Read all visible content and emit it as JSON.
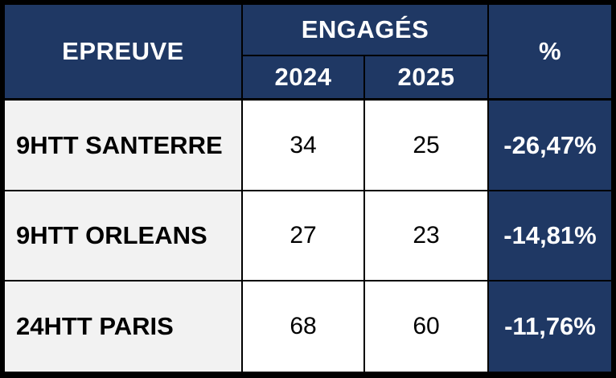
{
  "header": {
    "epreuve_label": "EPREUVE",
    "engages_label": "ENGAGÉS",
    "year_a": "2024",
    "year_b": "2025",
    "percent_label": "%"
  },
  "rows": [
    {
      "epreuve": "9HTT SANTERRE",
      "y2024": "34",
      "y2025": "25",
      "pct": "-26,47%"
    },
    {
      "epreuve": "9HTT ORLEANS",
      "y2024": "27",
      "y2025": "23",
      "pct": "-14,81%"
    },
    {
      "epreuve": "24HTT PARIS",
      "y2024": "68",
      "y2025": "60",
      "pct": "-11,76%"
    }
  ],
  "colors": {
    "header_bg": "#1f3864",
    "label_bg": "#f2f2f2",
    "cell_bg": "#ffffff",
    "border": "#000000"
  }
}
